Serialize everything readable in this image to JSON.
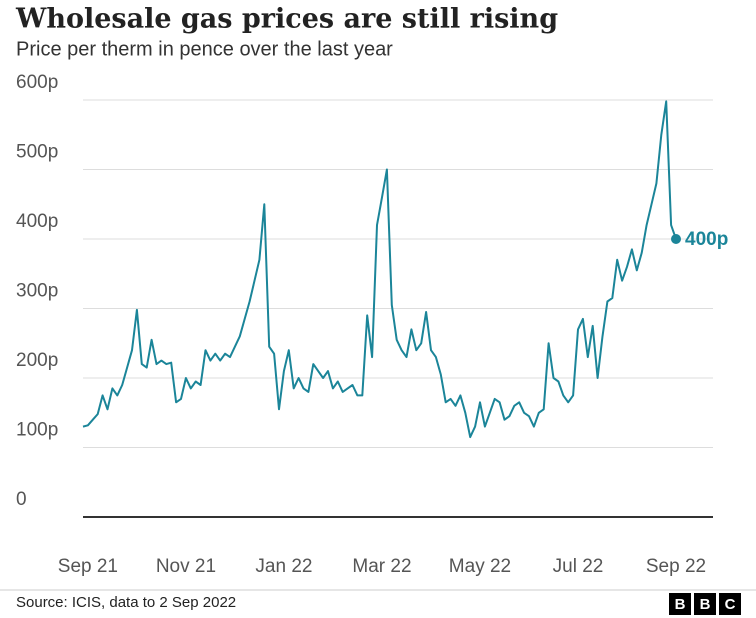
{
  "chart_data": {
    "type": "line",
    "title": "Wholesale gas prices are still rising",
    "subtitle": "Price per therm in pence over the last year",
    "source": "Source: ICIS, data to 2 Sep 2022",
    "logo": [
      "B",
      "B",
      "C"
    ],
    "end_label": "400p",
    "color": "#1b8599",
    "grid": true,
    "ylim": [
      0,
      600
    ],
    "yticks": [
      0,
      {
        "value": 100,
        "label": "100p"
      },
      {
        "value": 200,
        "label": "200p"
      },
      {
        "value": 300,
        "label": "300p"
      },
      {
        "value": 400,
        "label": "400p"
      },
      {
        "value": 500,
        "label": "500p"
      },
      {
        "value": 600,
        "label": "600p"
      }
    ],
    "categories": [
      null,
      "Sep 21",
      null,
      null,
      null,
      null,
      null,
      null,
      null,
      null,
      null,
      null,
      null,
      null,
      null,
      null,
      null,
      null,
      null,
      null,
      null,
      "Nov 21",
      null,
      null,
      null,
      null,
      null,
      null,
      null,
      null,
      null,
      null,
      null,
      null,
      null,
      null,
      null,
      null,
      null,
      null,
      null,
      "Jan 22",
      null,
      null,
      null,
      null,
      null,
      null,
      null,
      null,
      null,
      null,
      null,
      null,
      null,
      null,
      null,
      null,
      null,
      null,
      null,
      "Mar 22",
      null,
      null,
      null,
      null,
      null,
      null,
      null,
      null,
      null,
      null,
      null,
      null,
      null,
      null,
      null,
      null,
      null,
      null,
      null,
      "May 22",
      null,
      null,
      null,
      null,
      null,
      null,
      null,
      null,
      null,
      null,
      null,
      null,
      null,
      null,
      null,
      null,
      null,
      null,
      null,
      "Jul 22",
      null,
      null,
      null,
      null,
      null,
      null,
      null,
      null,
      null,
      null,
      null,
      null,
      null,
      null,
      null,
      null,
      null,
      null,
      null,
      "Sep 22"
    ],
    "values": [
      130,
      132,
      140,
      148,
      175,
      155,
      185,
      175,
      190,
      215,
      240,
      298,
      220,
      215,
      255,
      220,
      225,
      220,
      222,
      165,
      170,
      200,
      185,
      195,
      190,
      240,
      225,
      235,
      225,
      235,
      230,
      245,
      260,
      285,
      310,
      340,
      370,
      450,
      245,
      235,
      155,
      210,
      240,
      185,
      200,
      185,
      180,
      220,
      210,
      200,
      210,
      185,
      195,
      180,
      185,
      190,
      175,
      175,
      290,
      230,
      420,
      460,
      500,
      305,
      255,
      240,
      230,
      270,
      240,
      250,
      295,
      240,
      230,
      205,
      165,
      170,
      160,
      175,
      150,
      115,
      130,
      165,
      130,
      150,
      170,
      165,
      140,
      145,
      160,
      165,
      150,
      145,
      130,
      150,
      155,
      250,
      200,
      195,
      175,
      165,
      175,
      270,
      285,
      230,
      275,
      200,
      260,
      310,
      315,
      370,
      340,
      360,
      385,
      355,
      380,
      420,
      450,
      480,
      550,
      598,
      420,
      400
    ]
  }
}
